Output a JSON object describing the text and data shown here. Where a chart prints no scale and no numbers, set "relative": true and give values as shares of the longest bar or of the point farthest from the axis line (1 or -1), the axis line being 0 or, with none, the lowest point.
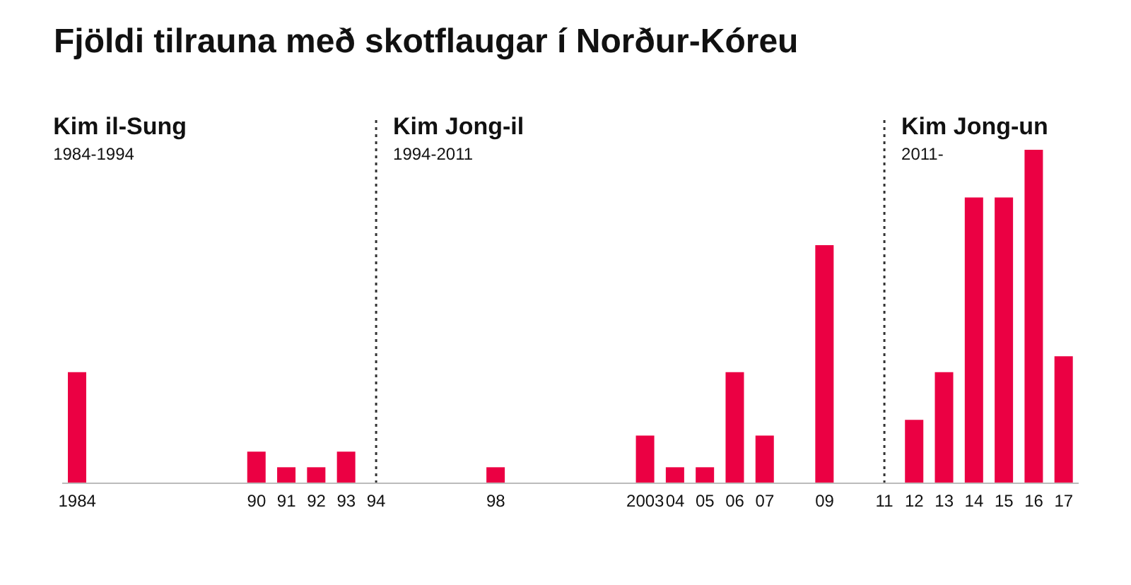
{
  "chart_data": {
    "type": "bar",
    "title": "Fjöldi tilrauna með skotflaugar í Norður-Kóreu",
    "categories": [
      "1984",
      null,
      null,
      null,
      null,
      null,
      "90",
      "91",
      "92",
      "93",
      "94",
      null,
      null,
      null,
      "98",
      null,
      null,
      null,
      null,
      "2003",
      "04",
      "05",
      "06",
      "07",
      null,
      "09",
      null,
      "11",
      "12",
      "13",
      "14",
      "15",
      "16",
      "17"
    ],
    "values": [
      0.333,
      0,
      0,
      0,
      0,
      0,
      0.095,
      0.048,
      0.048,
      0.095,
      0,
      0,
      0,
      0,
      0.048,
      0,
      0,
      0,
      0,
      0.143,
      0.048,
      0.048,
      0.333,
      0.143,
      0,
      0.714,
      0,
      0,
      0.19,
      0.333,
      0.857,
      0.857,
      1,
      0.381
    ],
    "color": "#eb0043",
    "relative": true,
    "grid": false,
    "legend": false,
    "ref_lines": [
      {
        "axis": "x",
        "value": "94",
        "color": "#333333",
        "line_style": "dotted"
      },
      {
        "axis": "x",
        "value": "11",
        "color": "#333333",
        "line_style": "dotted"
      }
    ],
    "annotations": [
      "Kim il-Sung\n1984-1994",
      "Kim Jong-il\n1994-2011",
      "Kim Jong-un\n2011-"
    ]
  }
}
